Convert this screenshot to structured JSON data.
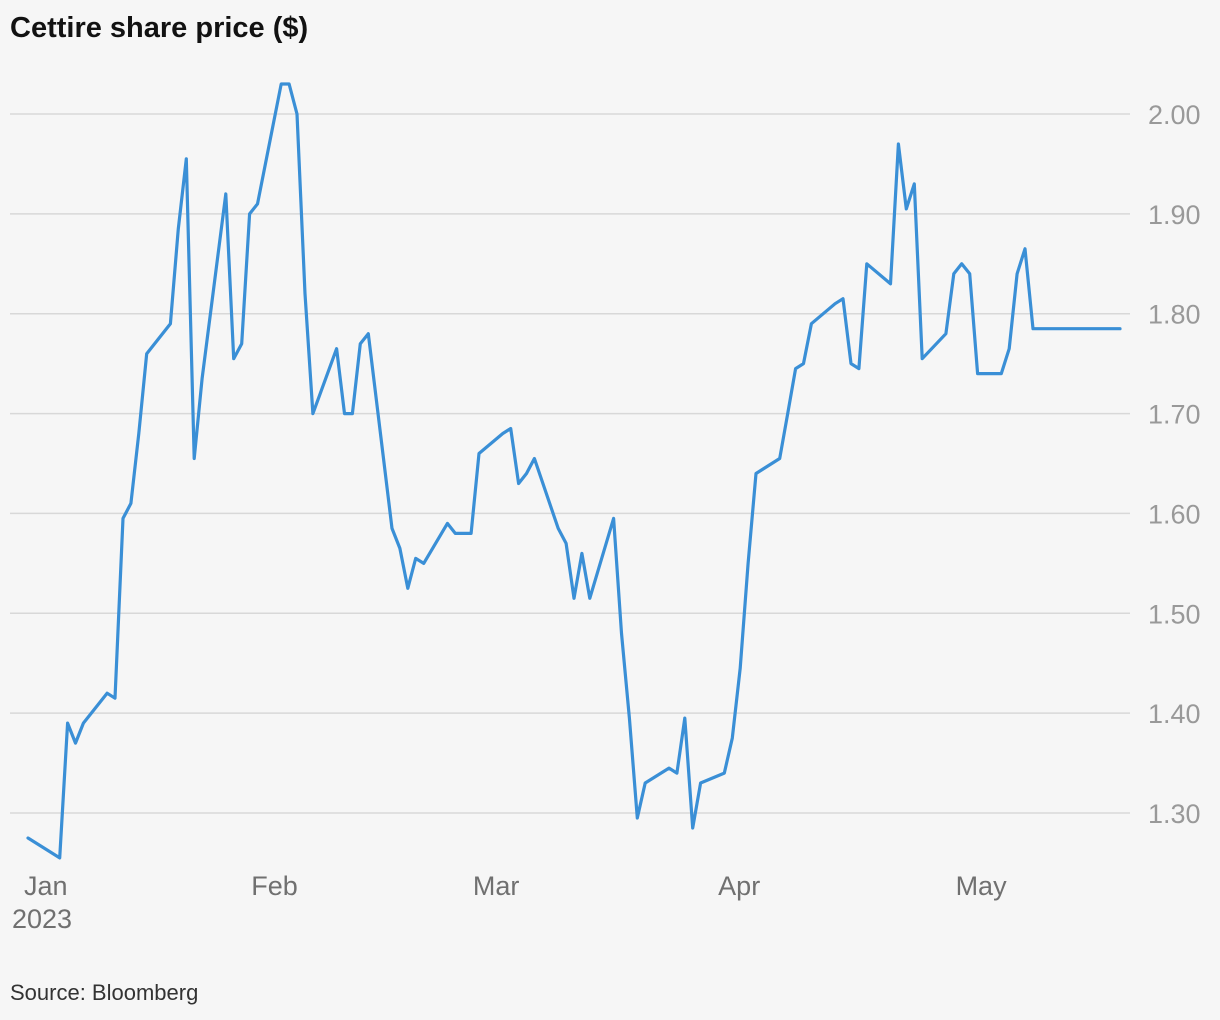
{
  "title": "Cettire share price ($)",
  "source": "Source: Bloomberg",
  "colors": {
    "line": "#3a8fd6",
    "grid": "#d8d8d8",
    "background": "#f6f6f6"
  },
  "chart_data": {
    "type": "line",
    "title": "Cettire share price ($)",
    "xlabel": "",
    "ylabel": "",
    "ylim": [
      1.25,
      2.05
    ],
    "yticks": [
      {
        "value": 1.3,
        "label": "1.30"
      },
      {
        "value": 1.4,
        "label": "1.40"
      },
      {
        "value": 1.5,
        "label": "1.50"
      },
      {
        "value": 1.6,
        "label": "1.60"
      },
      {
        "value": 1.7,
        "label": "1.70"
      },
      {
        "value": 1.8,
        "label": "1.80"
      },
      {
        "value": 1.9,
        "label": "1.90"
      },
      {
        "value": 2.0,
        "label": "2.00"
      }
    ],
    "xticks": [
      {
        "date": "2023-01-01",
        "label": "Jan",
        "sublabel": "2023"
      },
      {
        "date": "2023-02-01",
        "label": "Feb"
      },
      {
        "date": "2023-03-01",
        "label": "Mar"
      },
      {
        "date": "2023-04-01",
        "label": "Apr"
      },
      {
        "date": "2023-05-01",
        "label": "May"
      }
    ],
    "xlim": [
      "2023-01-01",
      "2023-05-19"
    ],
    "grid": "horizontal",
    "series": [
      {
        "x": [
          "2023-01-01",
          "2023-01-05",
          "2023-01-06",
          "2023-01-07",
          "2023-01-08",
          "2023-01-11",
          "2023-01-12",
          "2023-01-13",
          "2023-01-14",
          "2023-01-15",
          "2023-01-16",
          "2023-01-19",
          "2023-01-20",
          "2023-01-21",
          "2023-01-22",
          "2023-01-23",
          "2023-01-26",
          "2023-01-27",
          "2023-01-28",
          "2023-01-29",
          "2023-01-30",
          "2023-02-02",
          "2023-02-03",
          "2023-02-04",
          "2023-02-05",
          "2023-02-06",
          "2023-02-09",
          "2023-02-10",
          "2023-02-11",
          "2023-02-12",
          "2023-02-13",
          "2023-02-16",
          "2023-02-17",
          "2023-02-18",
          "2023-02-19",
          "2023-02-20",
          "2023-02-23",
          "2023-02-24",
          "2023-02-25",
          "2023-02-26",
          "2023-02-27",
          "2023-03-02",
          "2023-03-03",
          "2023-03-04",
          "2023-03-05",
          "2023-03-06",
          "2023-03-09",
          "2023-03-10",
          "2023-03-11",
          "2023-03-12",
          "2023-03-13",
          "2023-03-16",
          "2023-03-17",
          "2023-03-18",
          "2023-03-19",
          "2023-03-20",
          "2023-03-23",
          "2023-03-24",
          "2023-03-25",
          "2023-03-26",
          "2023-03-27",
          "2023-03-30",
          "2023-03-31",
          "2023-04-01",
          "2023-04-02",
          "2023-04-03",
          "2023-04-06",
          "2023-04-07",
          "2023-04-08",
          "2023-04-09",
          "2023-04-10",
          "2023-04-13",
          "2023-04-14",
          "2023-04-15",
          "2023-04-16",
          "2023-04-17",
          "2023-04-20",
          "2023-04-21",
          "2023-04-22",
          "2023-04-23",
          "2023-04-24",
          "2023-04-27",
          "2023-04-28",
          "2023-04-29",
          "2023-04-30",
          "2023-05-01",
          "2023-05-04",
          "2023-05-05",
          "2023-05-06",
          "2023-05-07",
          "2023-05-08",
          "2023-05-11",
          "2023-05-12",
          "2023-05-13",
          "2023-05-14",
          "2023-05-15",
          "2023-05-18",
          "2023-05-19"
        ],
        "y": [
          1.275,
          1.255,
          1.39,
          1.37,
          1.39,
          1.42,
          1.415,
          1.595,
          1.61,
          1.68,
          1.76,
          1.79,
          1.885,
          1.955,
          1.655,
          1.735,
          1.92,
          1.755,
          1.77,
          1.9,
          1.91,
          2.03,
          2.03,
          2.0,
          1.82,
          1.7,
          1.765,
          1.7,
          1.7,
          1.77,
          1.78,
          1.585,
          1.565,
          1.525,
          1.555,
          1.55,
          1.59,
          1.58,
          1.58,
          1.58,
          1.66,
          1.68,
          1.685,
          1.63,
          1.64,
          1.655,
          1.585,
          1.57,
          1.515,
          1.56,
          1.515,
          1.595,
          1.48,
          1.395,
          1.295,
          1.33,
          1.345,
          1.34,
          1.395,
          1.285,
          1.33,
          1.34,
          1.375,
          1.445,
          1.55,
          1.64,
          1.655,
          1.7,
          1.745,
          1.75,
          1.79,
          1.81,
          1.815,
          1.75,
          1.745,
          1.85,
          1.83,
          1.97,
          1.905,
          1.93,
          1.755,
          1.78,
          1.84,
          1.85,
          1.84,
          1.74,
          1.74,
          1.765,
          1.84,
          1.865,
          1.785,
          1.785,
          1.785,
          1.785,
          1.785,
          1.785,
          1.785,
          1.785
        ]
      }
    ]
  }
}
